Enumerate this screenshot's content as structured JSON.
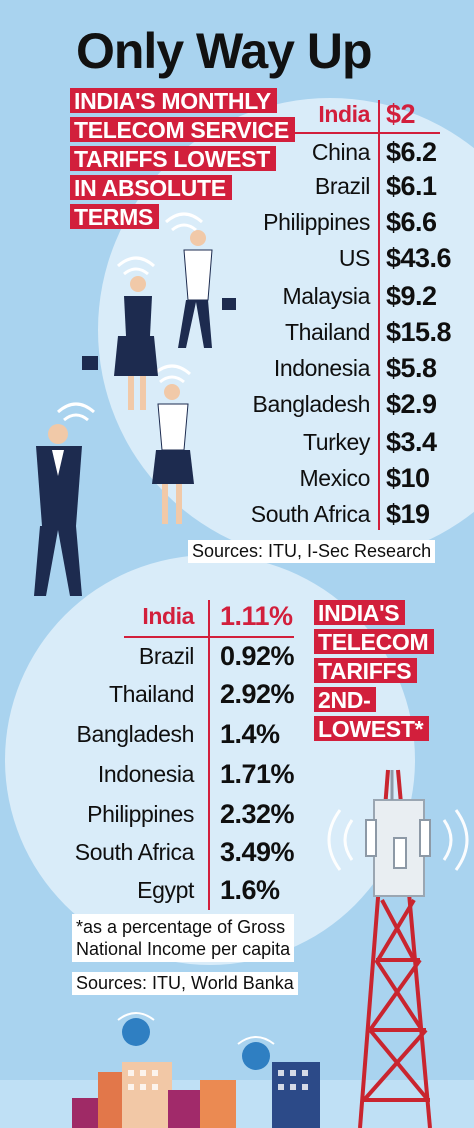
{
  "title": "Only Way Up",
  "section1": {
    "label_lines": [
      "INDIA'S MONTHLY",
      "TELECOM SERVICE",
      "TARIFFS LOWEST",
      "IN ABSOLUTE",
      "TERMS"
    ],
    "rows": [
      {
        "country": "India",
        "value": "$2"
      },
      {
        "country": "China",
        "value": "$6.2"
      },
      {
        "country": "Brazil",
        "value": "$6.1"
      },
      {
        "country": "Philippines",
        "value": "$6.6"
      },
      {
        "country": "US",
        "value": "$43.6"
      },
      {
        "country": "Malaysia",
        "value": "$9.2"
      },
      {
        "country": "Thailand",
        "value": "$15.8"
      },
      {
        "country": "Indonesia",
        "value": "$5.8"
      },
      {
        "country": "Bangladesh",
        "value": "$2.9"
      },
      {
        "country": "Turkey",
        "value": "$3.4"
      },
      {
        "country": "Mexico",
        "value": "$10"
      },
      {
        "country": "South Africa",
        "value": "$19"
      }
    ],
    "source": "Sources: ITU, I-Sec Research"
  },
  "section2": {
    "label_lines": [
      "INDIA'S",
      "TELECOM",
      "TARIFFS",
      "2ND-",
      "LOWEST*"
    ],
    "rows": [
      {
        "country": "India",
        "value": "1.11%"
      },
      {
        "country": "Brazil",
        "value": "0.92%"
      },
      {
        "country": "Thailand",
        "value": "2.92%"
      },
      {
        "country": "Bangladesh",
        "value": "1.4%"
      },
      {
        "country": "Indonesia",
        "value": "1.71%"
      },
      {
        "country": "Philippines",
        "value": "2.32%"
      },
      {
        "country": "South Africa",
        "value": "3.49%"
      },
      {
        "country": "Egypt",
        "value": "1.6%"
      }
    ],
    "footnote_lines": [
      "*as a percentage of Gross",
      "National Income per capita"
    ],
    "source": "Sources: ITU, World Banka"
  },
  "colors": {
    "background": "#a9d3ef",
    "circle": "#d9ecf9",
    "accent_red": "#d21f3c",
    "suit_navy": "#1d2b4f"
  },
  "icons": [
    "wifi-signal-icon",
    "business-person-illustration",
    "telecom-tower-illustration",
    "city-buildings-illustration"
  ]
}
